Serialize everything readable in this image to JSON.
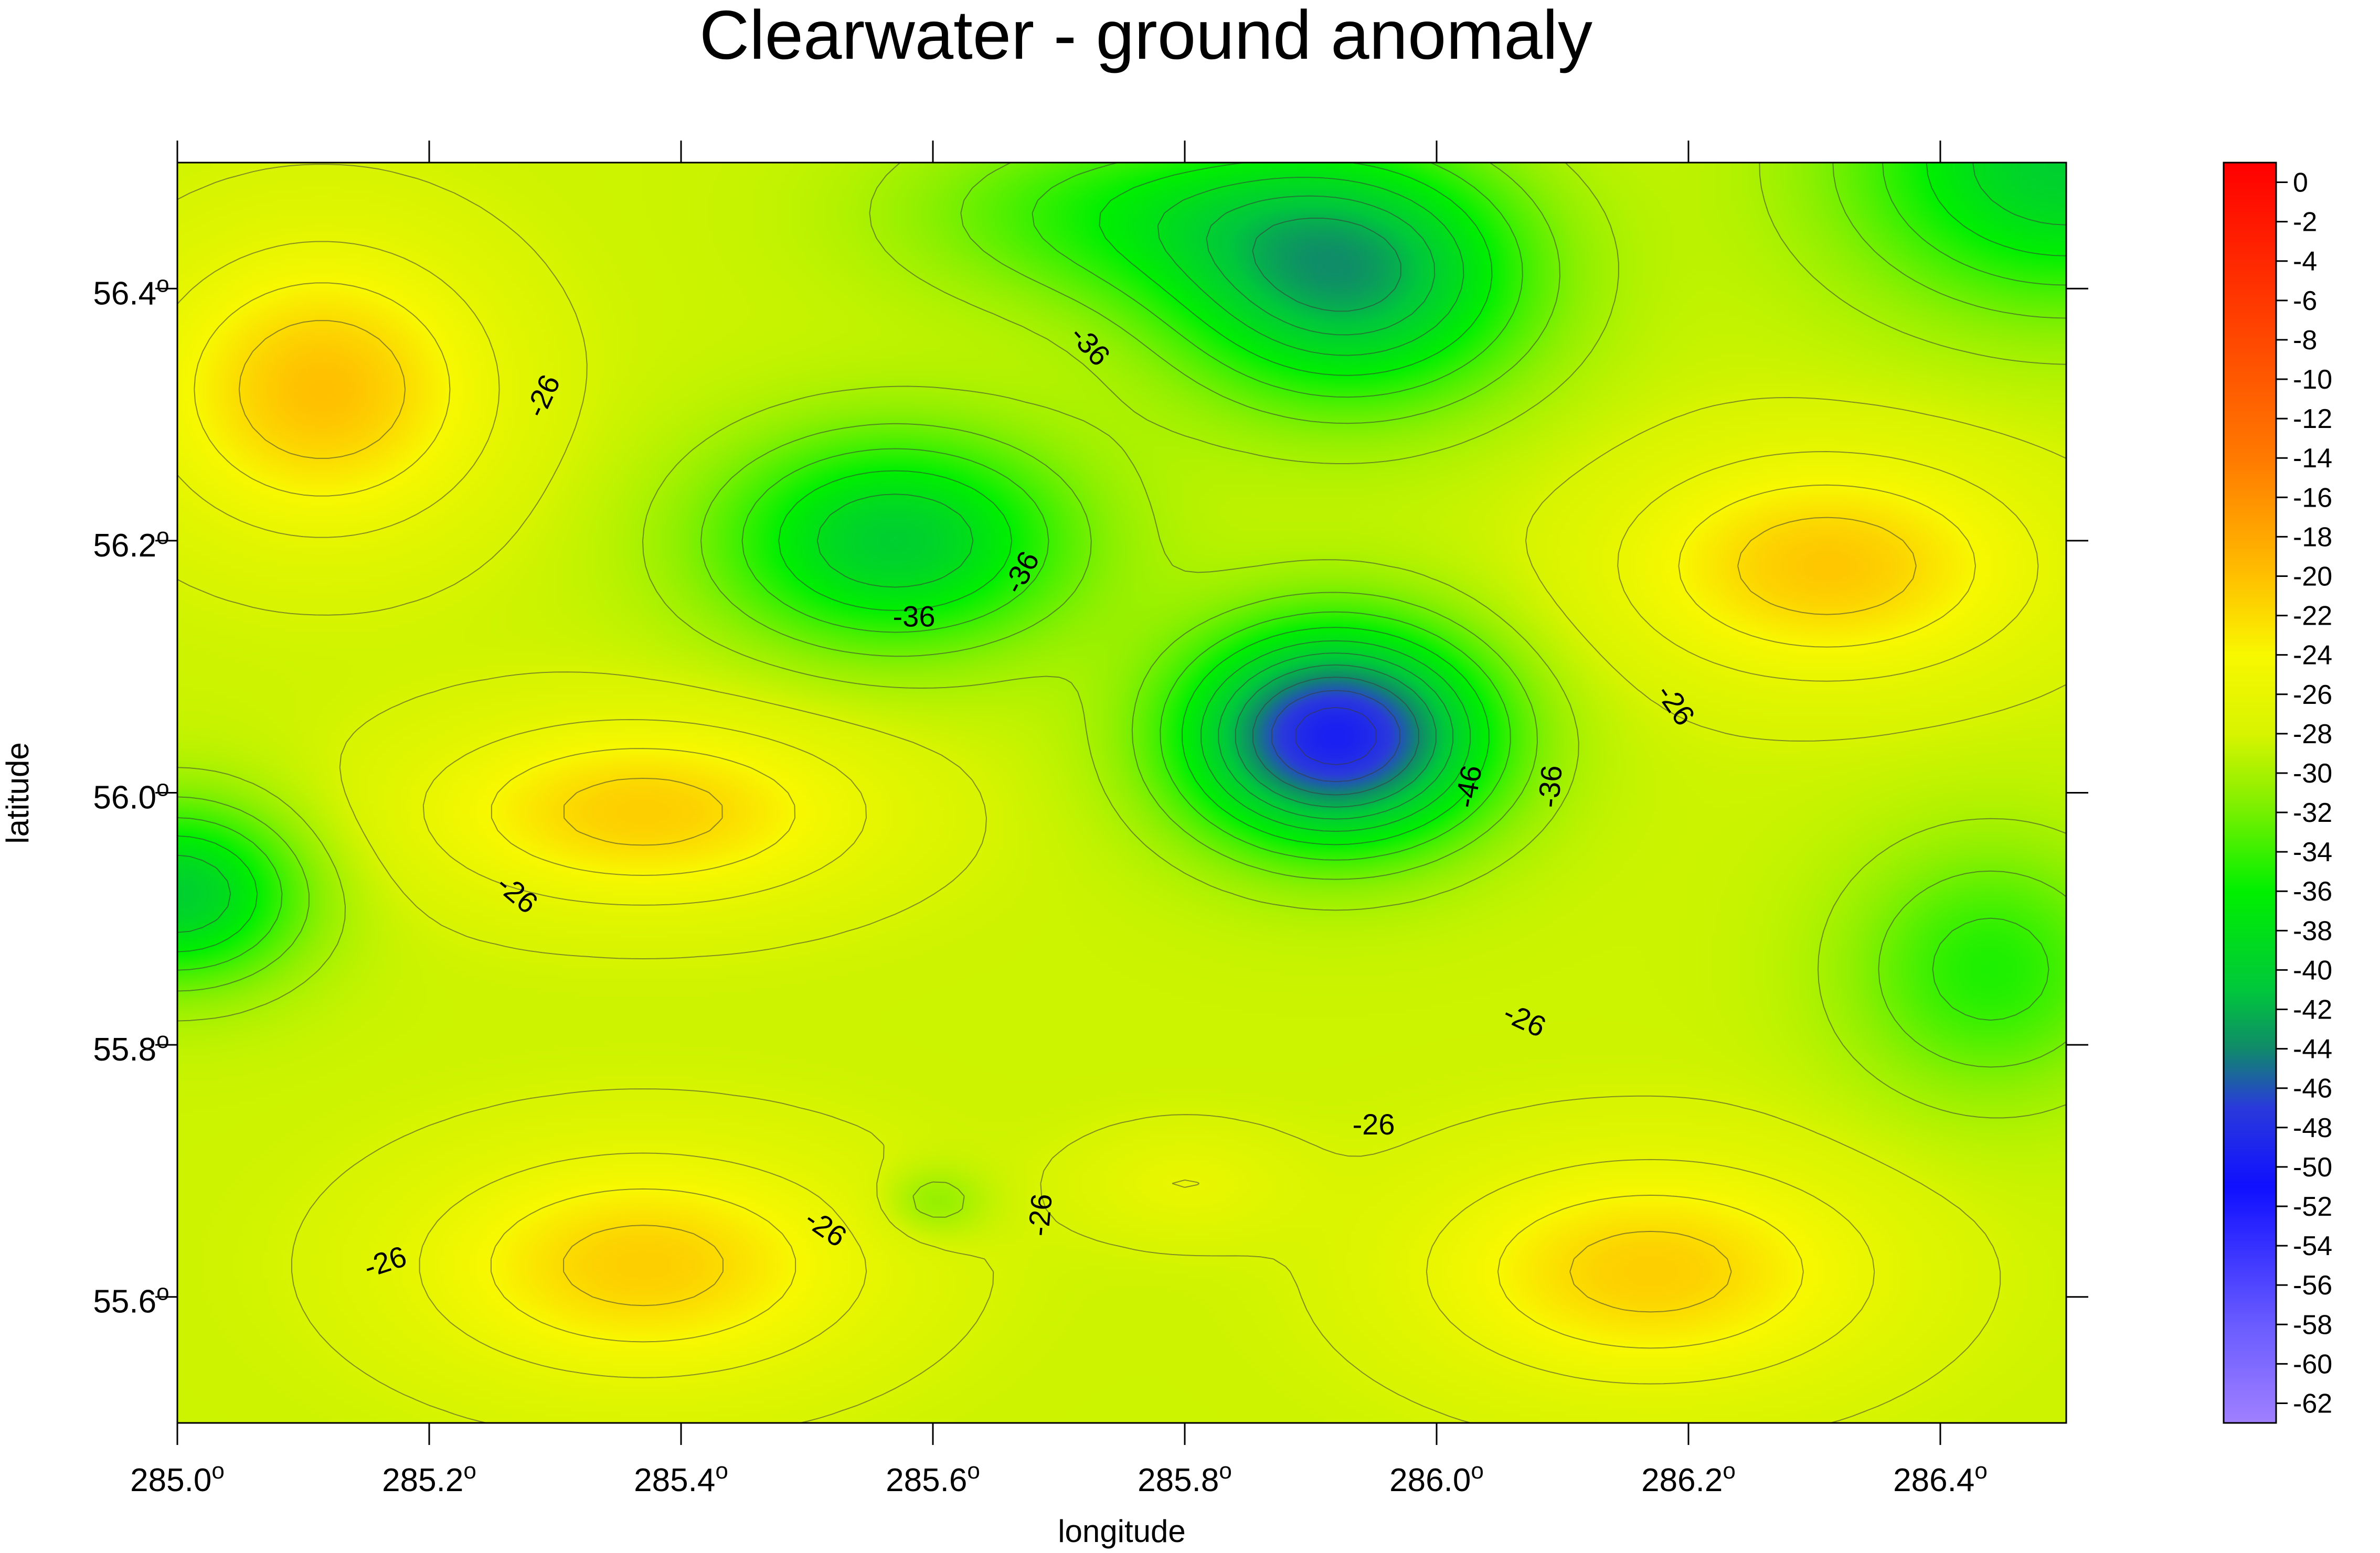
{
  "chart_data": {
    "type": "heatmap",
    "title": "Clearwater - ground anomaly",
    "xlabel": "longitude",
    "ylabel": "latitude",
    "xlim": [
      285.0,
      286.5
    ],
    "ylim": [
      55.5,
      56.5
    ],
    "x_ticks": [
      {
        "value": 285.0,
        "label": "285.0",
        "sup": "o"
      },
      {
        "value": 285.2,
        "label": "285.2",
        "sup": "o"
      },
      {
        "value": 285.4,
        "label": "285.4",
        "sup": "o"
      },
      {
        "value": 285.6,
        "label": "285.6",
        "sup": "o"
      },
      {
        "value": 285.8,
        "label": "285.8",
        "sup": "o"
      },
      {
        "value": 286.0,
        "label": "286.0",
        "sup": "o"
      },
      {
        "value": 286.2,
        "label": "286.2",
        "sup": "o"
      },
      {
        "value": 286.4,
        "label": "286.4",
        "sup": "o"
      }
    ],
    "y_ticks": [
      {
        "value": 55.6,
        "label": "55.6",
        "sup": "o"
      },
      {
        "value": 55.8,
        "label": "55.8",
        "sup": "o"
      },
      {
        "value": 56.0,
        "label": "56.0",
        "sup": "o"
      },
      {
        "value": 56.2,
        "label": "56.2",
        "sup": "o"
      },
      {
        "value": 56.4,
        "label": "56.4",
        "sup": "o"
      }
    ],
    "colorbar": {
      "min": -63,
      "max": 1,
      "ticks": [
        0,
        -2,
        -4,
        -6,
        -8,
        -10,
        -12,
        -14,
        -16,
        -18,
        -20,
        -22,
        -24,
        -26,
        -28,
        -30,
        -32,
        -34,
        -36,
        -38,
        -40,
        -42,
        -44,
        -46,
        -48,
        -50,
        -52,
        -54,
        -56,
        -58,
        -60,
        -62
      ],
      "tick_labels": [
        "0",
        "-2",
        "-4",
        "-6",
        "-8",
        "-10",
        "-12",
        "-14",
        "-16",
        "-18",
        "-20",
        "-22",
        "-24",
        "-26",
        "-28",
        "-30",
        "-32",
        "-34",
        "-36",
        "-38",
        "-40",
        "-42",
        "-44",
        "-46",
        "-48",
        "-50",
        "-52",
        "-54",
        "-56",
        "-58",
        "-60",
        "-62"
      ],
      "colors": [
        {
          "v": -63,
          "c": "#a080ff"
        },
        {
          "v": -58,
          "c": "#6a5cff"
        },
        {
          "v": -51,
          "c": "#1010ff"
        },
        {
          "v": -47,
          "c": "#2a3adc"
        },
        {
          "v": -44,
          "c": "#108a6a"
        },
        {
          "v": -41,
          "c": "#00c83c"
        },
        {
          "v": -36,
          "c": "#00f000"
        },
        {
          "v": -31,
          "c": "#90f000"
        },
        {
          "v": -28,
          "c": "#d8f400"
        },
        {
          "v": -24,
          "c": "#f8f800"
        },
        {
          "v": -20,
          "c": "#ffc000"
        },
        {
          "v": -14,
          "c": "#ff7a00"
        },
        {
          "v": -6,
          "c": "#ff3800"
        },
        {
          "v": 1,
          "c": "#ff0000"
        }
      ]
    },
    "contour_interval": 2,
    "background_value": -28.5,
    "features": [
      {
        "x": 285.115,
        "y": 56.32,
        "sx": 0.09,
        "sy": 0.075,
        "amp": 8.5
      },
      {
        "x": 285.37,
        "y": 55.985,
        "sx": 0.12,
        "sy": 0.05,
        "amp": 7.5
      },
      {
        "x": 285.37,
        "y": 55.625,
        "sx": 0.12,
        "sy": 0.06,
        "amp": 7.5
      },
      {
        "x": 286.17,
        "y": 55.62,
        "sx": 0.12,
        "sy": 0.06,
        "amp": 7.5
      },
      {
        "x": 286.31,
        "y": 56.18,
        "sx": 0.11,
        "sy": 0.06,
        "amp": 8.0
      },
      {
        "x": 285.8,
        "y": 55.69,
        "sx": 0.06,
        "sy": 0.03,
        "amp": 2.5
      },
      {
        "x": 285.92,
        "y": 56.045,
        "sx": 0.085,
        "sy": 0.06,
        "amp": -21.0
      },
      {
        "x": 285.93,
        "y": 56.41,
        "sx": 0.1,
        "sy": 0.07,
        "amp": -14.0
      },
      {
        "x": 285.57,
        "y": 56.2,
        "sx": 0.1,
        "sy": 0.06,
        "amp": -11.5
      },
      {
        "x": 286.5,
        "y": 56.5,
        "sx": 0.12,
        "sy": 0.08,
        "amp": -11.5
      },
      {
        "x": 285.0,
        "y": 55.92,
        "sx": 0.07,
        "sy": 0.05,
        "amp": -11.5
      },
      {
        "x": 286.44,
        "y": 55.86,
        "sx": 0.08,
        "sy": 0.07,
        "amp": -6.5
      },
      {
        "x": 285.6,
        "y": 55.675,
        "sx": 0.03,
        "sy": 0.02,
        "amp": -3.0
      },
      {
        "x": 285.75,
        "y": 56.46,
        "sx": 0.12,
        "sy": 0.05,
        "amp": -6.0
      }
    ],
    "contour_labels": [
      {
        "text": "-26",
        "x": 285.29,
        "y": 56.315,
        "angle": -65
      },
      {
        "text": "-36",
        "x": 285.725,
        "y": 56.355,
        "angle": 48
      },
      {
        "text": "-36",
        "x": 285.67,
        "y": 56.175,
        "angle": -62
      },
      {
        "text": "-36",
        "x": 285.585,
        "y": 56.14,
        "angle": 0
      },
      {
        "text": "-26",
        "x": 286.19,
        "y": 56.07,
        "angle": 55
      },
      {
        "text": "-46",
        "x": 286.025,
        "y": 56.005,
        "angle": -80
      },
      {
        "text": "-36",
        "x": 286.09,
        "y": 56.005,
        "angle": -85
      },
      {
        "text": "-26",
        "x": 285.27,
        "y": 55.92,
        "angle": 40
      },
      {
        "text": "-26",
        "x": 286.07,
        "y": 55.82,
        "angle": 25
      },
      {
        "text": "-26",
        "x": 285.95,
        "y": 55.737,
        "angle": 0
      },
      {
        "text": "-26",
        "x": 285.685,
        "y": 55.665,
        "angle": -85
      },
      {
        "text": "-26",
        "x": 285.515,
        "y": 55.655,
        "angle": 35
      },
      {
        "text": "-26",
        "x": 285.165,
        "y": 55.628,
        "angle": -18
      }
    ]
  }
}
